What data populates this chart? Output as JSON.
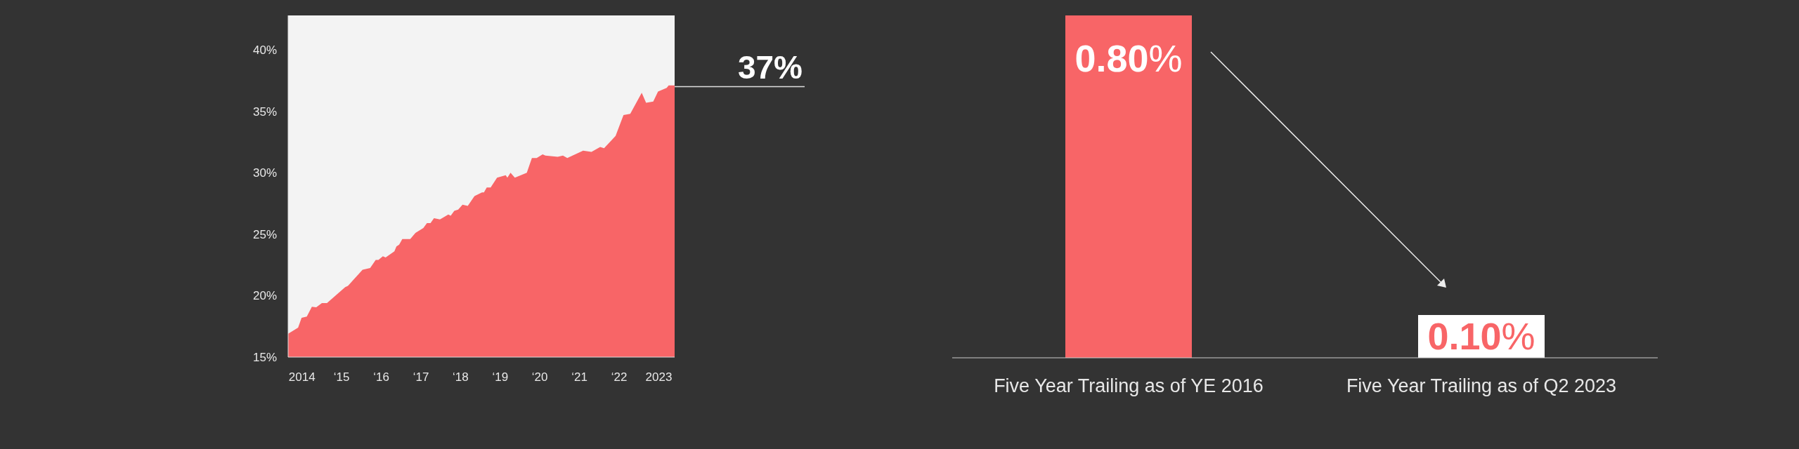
{
  "chart_data": [
    {
      "type": "area",
      "color": "#f86567",
      "x": [
        "2013-08-26",
        "2013-11-26",
        "2013-12-28",
        "2014-02-14",
        "2014-04-02",
        "2014-05-12",
        "2014-07-03",
        "2014-08-19",
        "2015-02-03",
        "2015-02-28",
        "2015-07-13",
        "2015-09-21",
        "2015-11-11",
        "2015-12-06",
        "2016-01-16",
        "2016-02-10",
        "2016-05-01",
        "2016-05-20",
        "2016-06-14",
        "2016-07-13",
        "2016-09-24",
        "2016-11-11",
        "2017-01-23",
        "2017-02-25",
        "2017-03-30",
        "2017-05-01",
        "2017-06-25",
        "2017-09-10",
        "2017-10-02",
        "2017-11-04",
        "2017-12-10",
        "2018-01-19",
        "2018-03-08",
        "2018-05-09",
        "2018-07-17",
        "2018-08-04",
        "2018-08-30",
        "2018-10-05",
        "2018-12-03",
        "2019-02-21",
        "2019-03-08",
        "2019-04-06",
        "2019-05-16",
        "2019-09-03",
        "2019-10-20",
        "2019-12-03",
        "2020-01-27",
        "2020-02-21",
        "2020-06-14",
        "2020-08-01",
        "2020-09-10",
        "2021-02-03",
        "2021-04-21",
        "2021-07-10",
        "2021-08-15",
        "2021-11-29",
        "2022-02-10",
        "2022-04-13",
        "2022-07-28",
        "2022-09-06",
        "2022-11-11",
        "2022-12-25",
        "2023-03-15",
        "2023-04-02",
        "2023-05-27"
      ],
      "values": [
        16.9,
        17.4,
        18.2,
        18.3,
        19.1,
        19.05,
        19.4,
        19.4,
        20.7,
        20.8,
        22.1,
        22.25,
        22.9,
        22.9,
        23.2,
        23.1,
        23.6,
        24.0,
        24.15,
        24.6,
        24.6,
        25.1,
        25.5,
        25.9,
        25.9,
        26.3,
        26.2,
        26.6,
        26.5,
        26.9,
        27.0,
        27.4,
        27.3,
        28.1,
        28.4,
        28.4,
        28.8,
        28.8,
        29.6,
        29.8,
        29.6,
        30.0,
        29.6,
        30.0,
        31.2,
        31.2,
        31.5,
        31.4,
        31.3,
        31.4,
        31.2,
        31.8,
        31.7,
        32.1,
        32.0,
        33.0,
        34.7,
        34.8,
        36.5,
        35.7,
        35.8,
        36.6,
        36.9,
        37.1,
        37.1
      ],
      "xlim": [
        "2013-08-26",
        "2023-05-27"
      ],
      "xticks": [
        {
          "value": "2014",
          "label": "2014"
        },
        {
          "value": "2015",
          "label": "‘15"
        },
        {
          "value": "2016",
          "label": "‘16"
        },
        {
          "value": "2017",
          "label": "‘17"
        },
        {
          "value": "2018",
          "label": "‘18"
        },
        {
          "value": "2019",
          "label": "‘19"
        },
        {
          "value": "2020",
          "label": "‘20"
        },
        {
          "value": "2021",
          "label": "‘21"
        },
        {
          "value": "2022",
          "label": "‘22"
        },
        {
          "value": "2023",
          "label": "2023"
        }
      ],
      "ylim": [
        15,
        42.8
      ],
      "yticks": [
        {
          "value": 15,
          "label": "15%"
        },
        {
          "value": 20,
          "label": "20%"
        },
        {
          "value": 25,
          "label": "25%"
        },
        {
          "value": 30,
          "label": "30%"
        },
        {
          "value": 35,
          "label": "35%"
        },
        {
          "value": 40,
          "label": "40%"
        }
      ],
      "annotations": [
        {
          "text": "37%",
          "x": "2023-05-27",
          "y": 37
        }
      ]
    },
    {
      "type": "bar",
      "categories": [
        "Five Year Trailing as of YE 2016",
        "Five Year Trailing as of Q2 2023"
      ],
      "values": [
        0.8,
        0.1
      ],
      "colors": [
        "#f86567",
        "#ffffff"
      ],
      "value_labels": [
        "0.80%",
        "0.10%"
      ],
      "tick_labels": "x"
    }
  ]
}
